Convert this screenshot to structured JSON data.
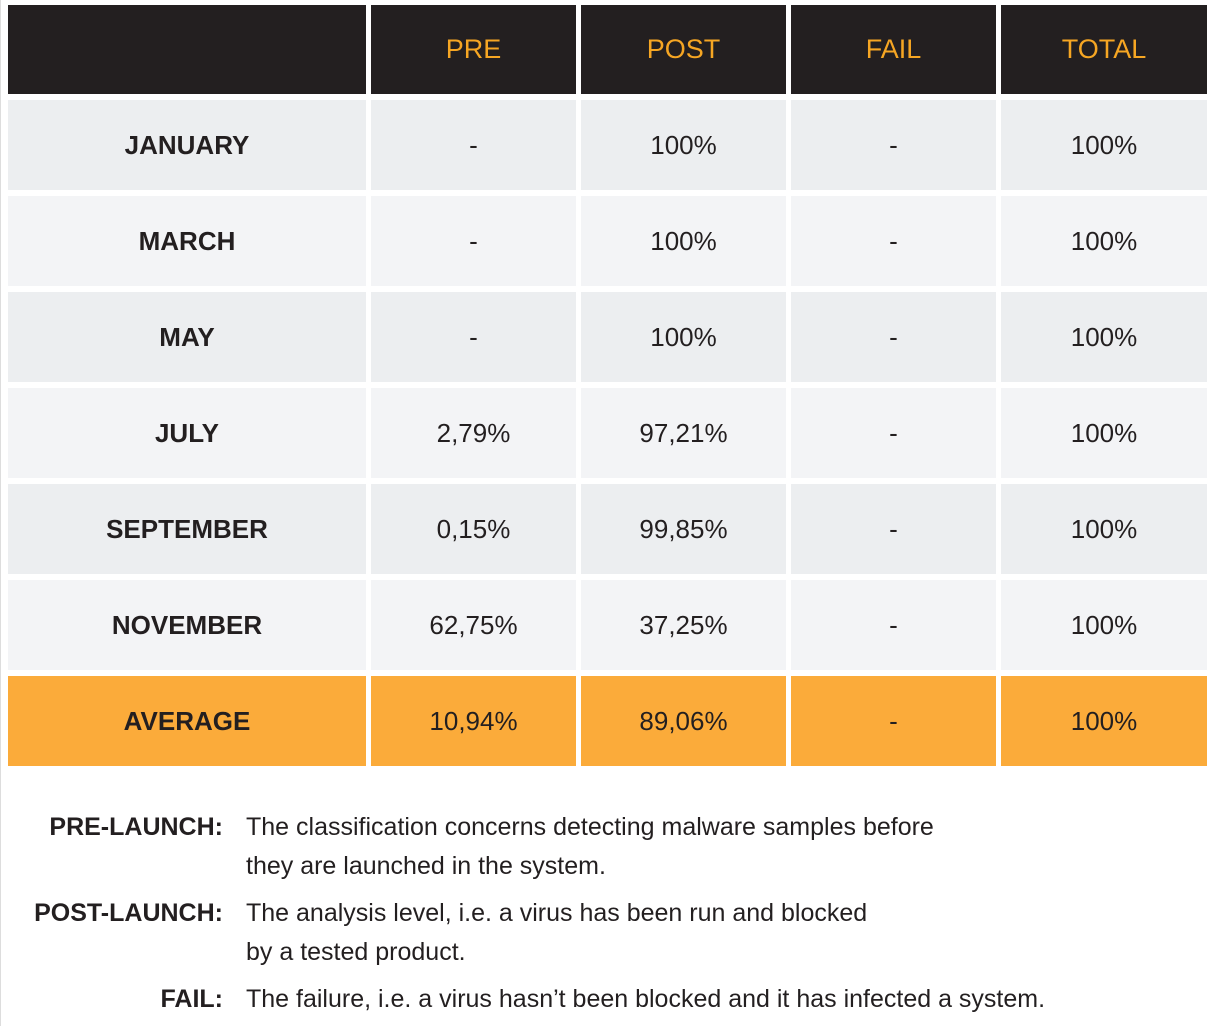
{
  "colors": {
    "header_bg": "#231f20",
    "header_text": "#f6a623",
    "row_odd": "#eceef0",
    "row_even": "#f3f4f6",
    "average_bg": "#fbab3a"
  },
  "table": {
    "headers": [
      "",
      "PRE",
      "POST",
      "FAIL",
      "TOTAL"
    ],
    "rows": [
      [
        "JANUARY",
        "-",
        "100%",
        "-",
        "100%"
      ],
      [
        "MARCH",
        "-",
        "100%",
        "-",
        "100%"
      ],
      [
        "MAY",
        "-",
        "100%",
        "-",
        "100%"
      ],
      [
        "JULY",
        "2,79%",
        "97,21%",
        "-",
        "100%"
      ],
      [
        "SEPTEMBER",
        "0,15%",
        "99,85%",
        "-",
        "100%"
      ],
      [
        "NOVEMBER",
        "62,75%",
        "37,25%",
        "-",
        "100%"
      ],
      [
        "AVERAGE",
        "10,94%",
        "89,06%",
        "-",
        "100%"
      ]
    ]
  },
  "legend": [
    {
      "term": "PRE-LAUNCH:",
      "definition": "The classification concerns detecting malware samples before\nthey are launched in the system."
    },
    {
      "term": "POST-LAUNCH:",
      "definition": "The analysis level, i.e. a virus has been run and blocked\nby a tested product."
    },
    {
      "term": "FAIL:",
      "definition": "The failure, i.e. a virus hasn’t been blocked and it has infected a system."
    }
  ]
}
